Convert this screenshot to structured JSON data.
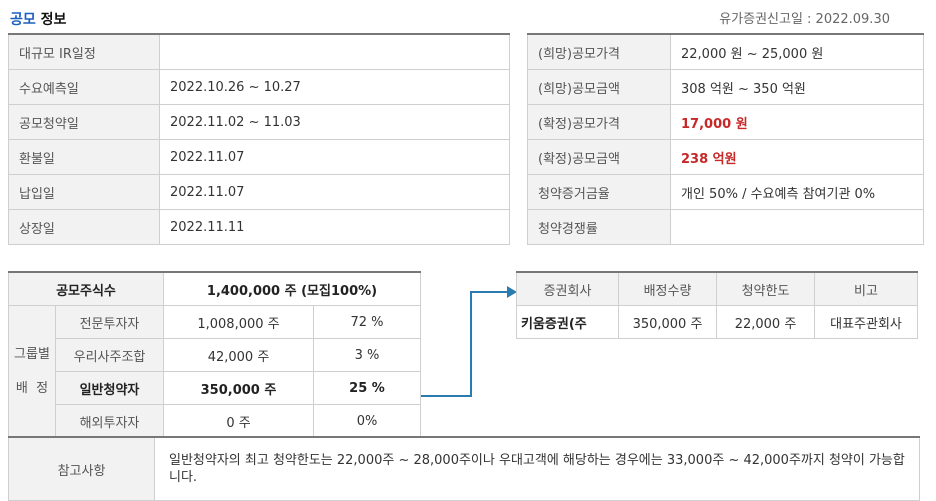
{
  "header": {
    "title_blue": "공모",
    "title_black": " 정보",
    "filing": "유가증권신고일 : 2022.09.30"
  },
  "schedule": [
    {
      "label": "대규모 IR일정",
      "value": ""
    },
    {
      "label": "수요예측일",
      "value": "2022.10.26 ~ 10.27"
    },
    {
      "label": "공모청약일",
      "value": "2022.11.02 ~ 11.03"
    },
    {
      "label": "환불일",
      "value": "2022.11.07"
    },
    {
      "label": "납입일",
      "value": "2022.11.07"
    },
    {
      "label": "상장일",
      "value": "2022.11.11"
    }
  ],
  "pricing": [
    {
      "label": "(희망)공모가격",
      "value": "22,000 원 ~ 25,000 원"
    },
    {
      "label": "(희망)공모금액",
      "value": "308 억원  ~ 350 억원"
    },
    {
      "label": "(확정)공모가격",
      "value": "17,000 원"
    },
    {
      "label": "(확정)공모금액",
      "value": "238 억원"
    },
    {
      "label": "청약증거금율",
      "value": "개인 50% / 수요예측 참여기관 0%"
    },
    {
      "label": "청약경쟁률",
      "value": ""
    }
  ],
  "allocation": {
    "total_label": "공모주식수",
    "total_value": "1,400,000 주 (모집100%)",
    "group_label_1": "그룹별",
    "group_label_2": "배  정",
    "rows": [
      {
        "name": "전문투자자",
        "shares": "1,008,000 주",
        "pct": "72 %"
      },
      {
        "name": "우리사주조합",
        "shares": "42,000 주",
        "pct": "3 %"
      },
      {
        "name": "일반청약자",
        "shares": "350,000 주",
        "pct": "25 %"
      },
      {
        "name": "해외투자자",
        "shares": "0 주",
        "pct": "0%"
      }
    ]
  },
  "underwriters": {
    "headers": [
      "증권회사",
      "배정수량",
      "청약한도",
      "비고"
    ],
    "rows": [
      [
        "키움증권(주",
        "350,000 주",
        "22,000 주",
        "대표주관회사"
      ]
    ]
  },
  "notes": {
    "label": "참고사항",
    "text": "일반청약자의 최고 청약한도는 22,000주 ~ 28,000주이나 우대고객에 해당하는 경우에는 33,000주 ~ 42,000주까지 청약이 가능합니다."
  },
  "colors": {
    "accent_blue": "#1d5fbf",
    "arrow": "#2a7bb0",
    "highlight_red": "#c62828"
  }
}
